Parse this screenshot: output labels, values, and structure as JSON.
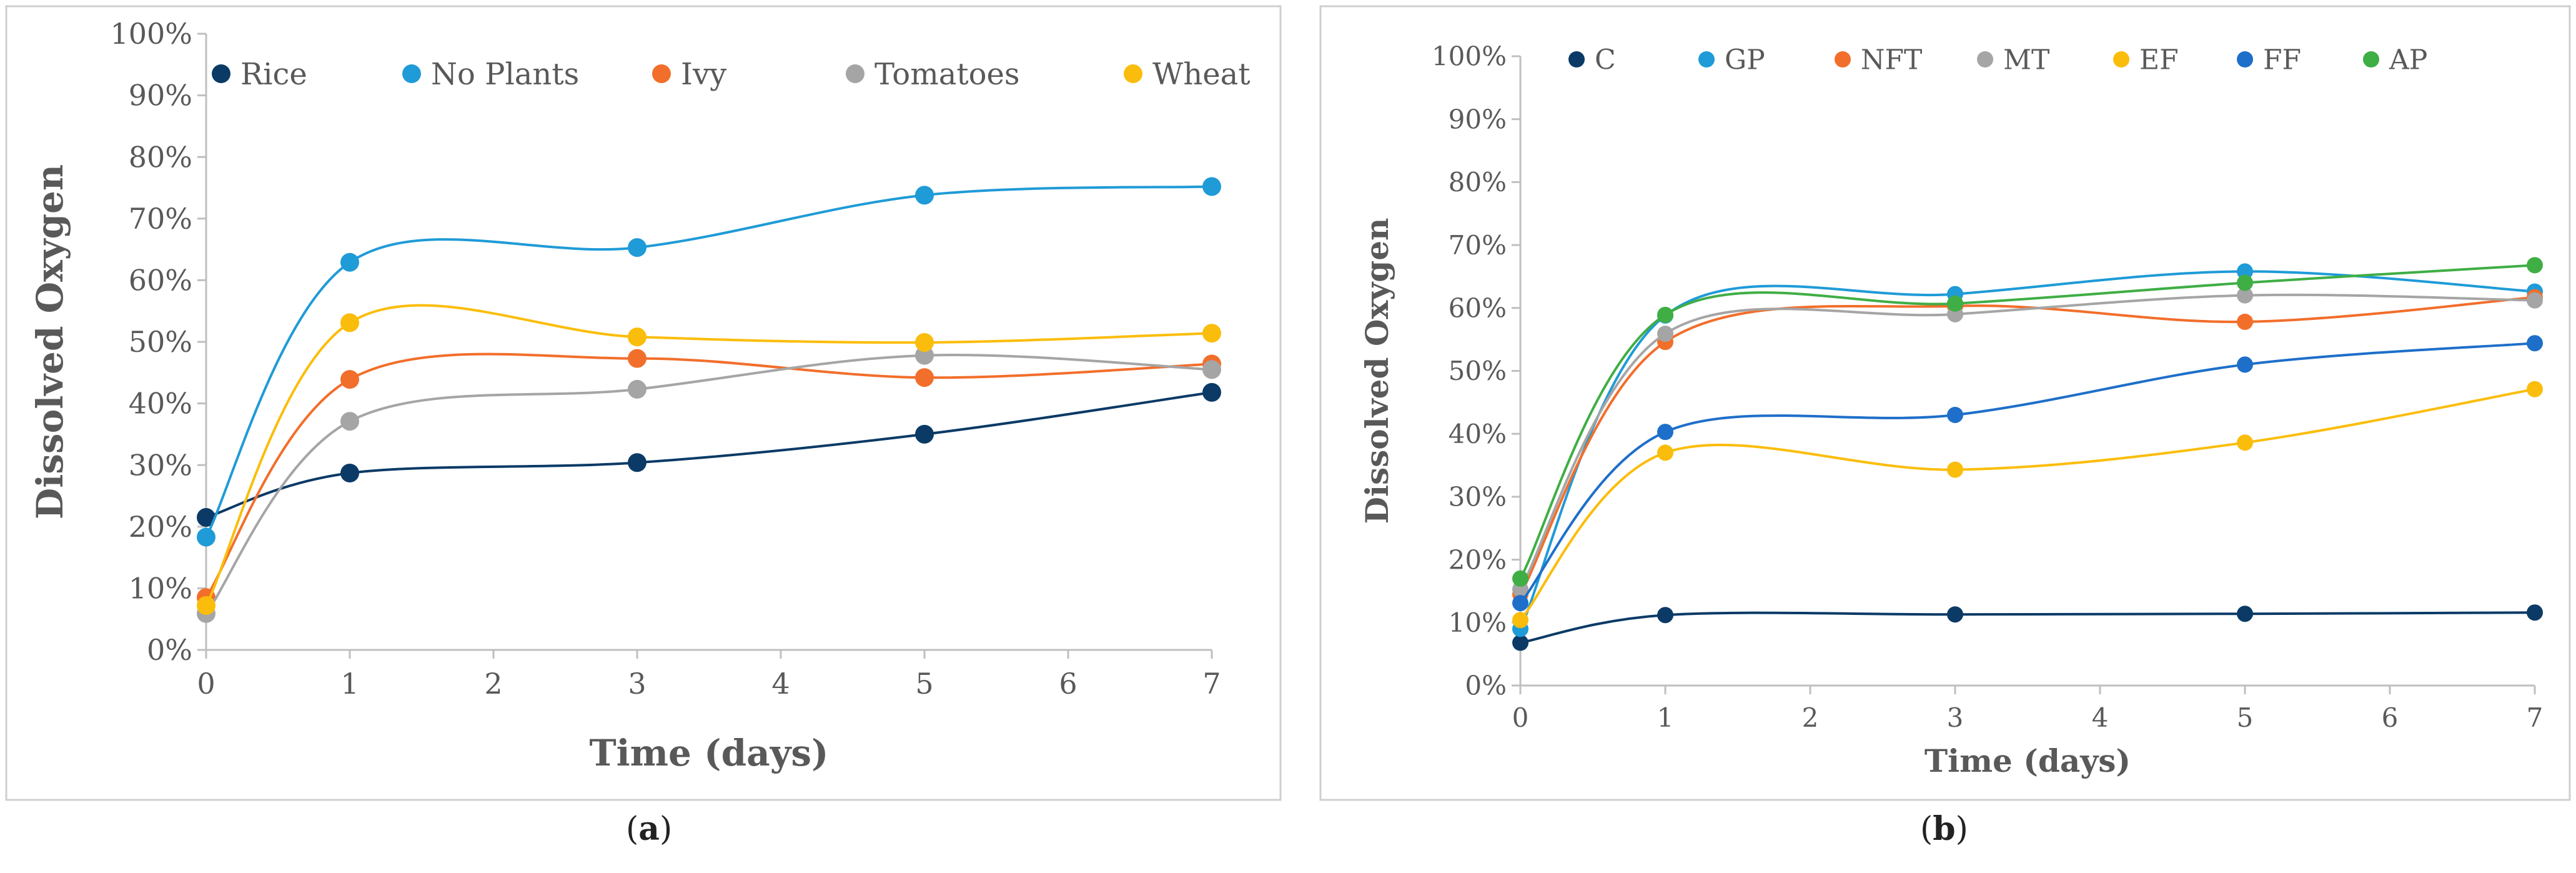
{
  "colors": {
    "rice": "#0b3a66",
    "no_plants": "#1f9bd7",
    "ivy": "#f26e2b",
    "tomatoes": "#a5a5a5",
    "wheat": "#fbbd0b",
    "c": "#0b3a66",
    "gp": "#1f9bd7",
    "nft": "#f26e2b",
    "mt": "#a5a5a5",
    "ef": "#fbbd0b",
    "ff": "#1e6fc9",
    "ap": "#3fae45"
  },
  "chart_data": [
    {
      "type": "line",
      "title": "",
      "xlabel": "Time (days)",
      "ylabel": "Dissolved Oxygen",
      "xlim": [
        0,
        7
      ],
      "ylim": [
        0,
        100
      ],
      "x_ticks": [
        "0",
        "1",
        "2",
        "3",
        "4",
        "5",
        "6",
        "7"
      ],
      "y_ticks": [
        "0%",
        "10%",
        "20%",
        "30%",
        "40%",
        "50%",
        "60%",
        "70%",
        "80%",
        "90%",
        "100%"
      ],
      "legend_position": "top",
      "x": [
        0,
        1,
        3,
        5,
        7
      ],
      "series": [
        {
          "name": "Rice",
          "color_key": "rice",
          "values": [
            21.5,
            28.7,
            30.4,
            35,
            41.8
          ]
        },
        {
          "name": "No Plants",
          "color_key": "no_plants",
          "values": [
            18.3,
            62.9,
            65.3,
            73.8,
            75.2
          ]
        },
        {
          "name": "Ivy",
          "color_key": "ivy",
          "values": [
            8.5,
            43.9,
            47.3,
            44.2,
            46.4
          ]
        },
        {
          "name": "Tomatoes",
          "color_key": "tomatoes",
          "values": [
            5.9,
            37.1,
            42.3,
            47.8,
            45.5
          ]
        },
        {
          "name": "Wheat",
          "color_key": "wheat",
          "values": [
            7.2,
            53.1,
            50.8,
            49.9,
            51.4
          ]
        }
      ],
      "caption_label": "a"
    },
    {
      "type": "line",
      "title": "",
      "xlabel": "Time (days)",
      "ylabel": "Dissolved Oxygen",
      "xlim": [
        0,
        7
      ],
      "ylim": [
        0,
        100
      ],
      "x_ticks": [
        "0",
        "1",
        "2",
        "3",
        "4",
        "5",
        "6",
        "7"
      ],
      "y_ticks": [
        "0%",
        "10%",
        "20%",
        "30%",
        "40%",
        "50%",
        "60%",
        "70%",
        "80%",
        "90%",
        "100%"
      ],
      "legend_position": "top",
      "x": [
        0,
        1,
        3,
        5,
        7
      ],
      "series": [
        {
          "name": "C",
          "color_key": "c",
          "values": [
            6.8,
            11.2,
            11.3,
            11.4,
            11.6
          ]
        },
        {
          "name": "GP",
          "color_key": "gp",
          "values": [
            9,
            58.8,
            62.2,
            65.8,
            62.6
          ]
        },
        {
          "name": "NFT",
          "color_key": "nft",
          "values": [
            14.5,
            54.6,
            60.3,
            57.8,
            61.7
          ]
        },
        {
          "name": "MT",
          "color_key": "mt",
          "values": [
            15.3,
            55.9,
            59,
            62,
            61.2
          ]
        },
        {
          "name": "EF",
          "color_key": "ef",
          "values": [
            10.4,
            37,
            34.3,
            38.6,
            47.1
          ]
        },
        {
          "name": "FF",
          "color_key": "ff",
          "values": [
            13.1,
            40.3,
            43,
            51,
            54.4
          ]
        },
        {
          "name": "AP",
          "color_key": "ap",
          "values": [
            17,
            58.9,
            60.7,
            64,
            66.8
          ]
        }
      ],
      "caption_label": "b"
    }
  ]
}
